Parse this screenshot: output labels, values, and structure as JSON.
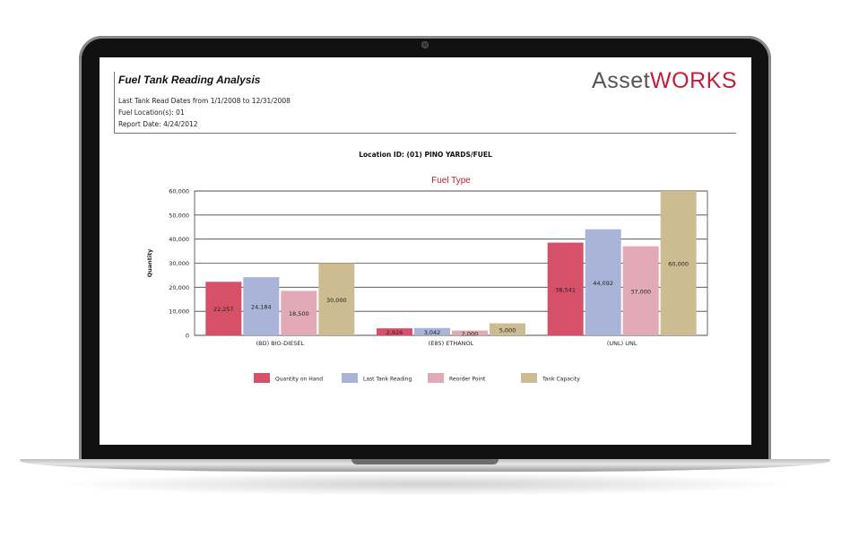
{
  "report": {
    "title": "Fuel Tank Reading Analysis",
    "lines": [
      "Last Tank Read Dates from 1/1/2008 to 12/31/2008",
      "Fuel Location(s):  01",
      "Report Date: 4/24/2012"
    ],
    "location": "Location ID:  (01)  PINO YARDS/FUEL"
  },
  "logo": {
    "prefix": "Asset",
    "accent": "WORKS",
    "brand_color": "#c21f3a"
  },
  "chart_data": {
    "type": "bar",
    "title": "Fuel Type",
    "ylabel": "Quantity",
    "xlabel": "",
    "ylim": [
      0,
      60000
    ],
    "yticks": [
      "0",
      "10,000",
      "20,000",
      "30,000",
      "40,000",
      "50,000",
      "60,000"
    ],
    "categories": [
      "(BD) BIO-DIESEL",
      "(E85) ETHANOL",
      "(UNL) UNL"
    ],
    "series": [
      {
        "name": "Quantity on Hand",
        "color": "#d6506a",
        "values": [
          22257,
          2926,
          38541
        ],
        "labels": [
          "22,257",
          "2,926",
          "38,541"
        ]
      },
      {
        "name": "Last Tank Reading",
        "color": "#aab4d8",
        "values": [
          24184,
          3042,
          44092
        ],
        "labels": [
          "24,184",
          "3,042",
          "44,092"
        ]
      },
      {
        "name": "Reorder Point",
        "color": "#e2a9b6",
        "values": [
          18500,
          2000,
          37000
        ],
        "labels": [
          "18,500",
          "2,000",
          "37,000"
        ]
      },
      {
        "name": "Tank Capacity",
        "color": "#cdbb91",
        "values": [
          30000,
          5000,
          60000
        ],
        "labels": [
          "30,000",
          "5,000",
          "60,000"
        ]
      }
    ],
    "grid": true,
    "legend_position": "bottom"
  }
}
